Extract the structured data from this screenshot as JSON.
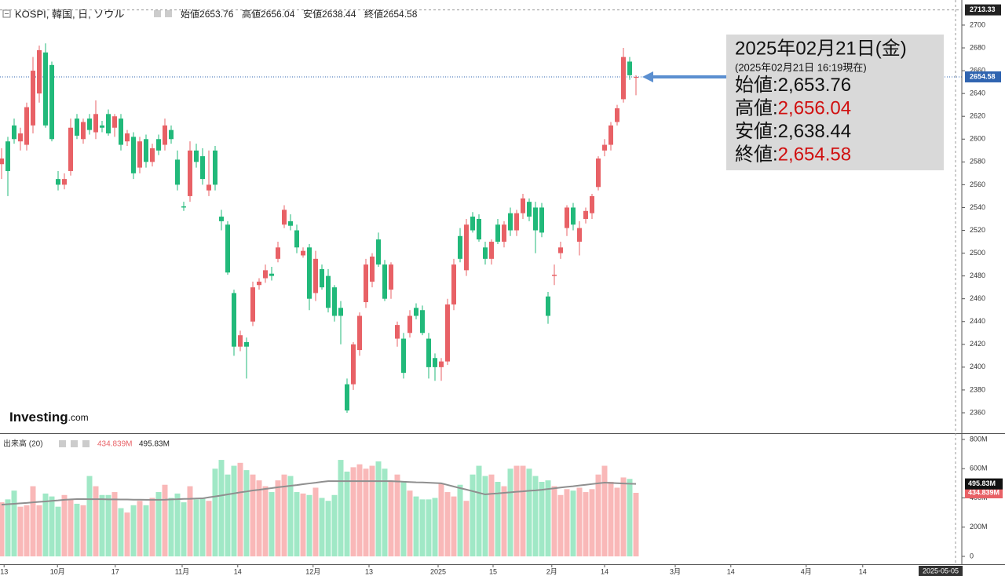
{
  "header": {
    "title": "KOSPI, 韓国, 日, ソウル",
    "labels": [
      "始値",
      "高値",
      "安値",
      "終値"
    ],
    "values": [
      2653.76,
      2656.04,
      2638.44,
      2654.58
    ]
  },
  "logo": "Investing",
  "logo_suffix": ".com",
  "info_box": {
    "date": "2025年02月21日(金)",
    "timestamp": "(2025年02月21日 16:19現在)",
    "labels": [
      "始値:",
      "高値:",
      "安値:",
      "終値:"
    ],
    "values": [
      "2,653.76",
      "2,656.04",
      "2,638.44",
      "2,654.58"
    ],
    "value_colors": [
      "#111111",
      "#d01010",
      "#111111",
      "#d01010"
    ]
  },
  "chart_data": [
    {
      "type": "candlestick",
      "up_color": "#e86166",
      "down_color": "#21b97a",
      "xlim": [
        -0.25,
        152.875
      ],
      "xticks": [
        {
          "value": 0.4,
          "label": "13"
        },
        {
          "value": 8.9,
          "label": "10月"
        },
        {
          "value": 18.1,
          "label": "17"
        },
        {
          "value": 28.75,
          "label": "11月"
        },
        {
          "value": 37.6,
          "label": "14"
        },
        {
          "value": 49.6,
          "label": "12月"
        },
        {
          "value": 58.5,
          "label": "13"
        },
        {
          "value": 69.5,
          "label": "2025"
        },
        {
          "value": 78.25,
          "label": "15"
        },
        {
          "value": 87.6,
          "label": "2月"
        },
        {
          "value": 96,
          "label": "14"
        },
        {
          "value": 107.25,
          "label": "3月"
        },
        {
          "value": 116.1,
          "label": "14"
        },
        {
          "value": 128.1,
          "label": "4月"
        },
        {
          "value": 137.1,
          "label": "14"
        }
      ],
      "cursor_date": {
        "value": 149.5,
        "label": "2025-05-05"
      },
      "ylim": [
        2342.1,
        2722
      ],
      "yticks": [
        2360,
        2380,
        2400,
        2420,
        2440,
        2460,
        2480,
        2500,
        2520,
        2540,
        2560,
        2580,
        2600,
        2620,
        2640,
        2660,
        2680,
        2700
      ],
      "high_marker": 2713.33,
      "last_price": 2654.58,
      "open": [
        2578,
        2598,
        2612,
        2598,
        2595,
        2612,
        2640,
        2676,
        2665,
        2565,
        2560,
        2572,
        2618,
        2600,
        2618,
        2606,
        2612,
        2622,
        2610,
        2618,
        2598,
        2602,
        2575,
        2600,
        2580,
        2600,
        2595,
        2608,
        2582,
        2541,
        2550,
        2590,
        2585,
        2555,
        2590,
        2532,
        2525,
        2465,
        2418,
        2422,
        2440,
        2472,
        2478,
        2482,
        2495,
        2525,
        2528,
        2520,
        2498,
        2505,
        2465,
        2486,
        2480,
        2470,
        2452,
        2385,
        2385,
        2415,
        2457,
        2475,
        2512,
        2490,
        2468,
        2425,
        2425,
        2430,
        2452,
        2450,
        2425,
        2408,
        2400,
        2405,
        2455,
        2515,
        2485,
        2532,
        2530,
        2505,
        2495,
        2525,
        2510,
        2535,
        2520,
        2535,
        2545,
        2540,
        2540,
        2462,
        2480,
        2500,
        2522,
        2540,
        2510,
        2530,
        2535,
        2558,
        2590,
        2595,
        2615,
        2635,
        2668,
        2653.76
      ],
      "high": [
        2592,
        2602,
        2618,
        2610,
        2632,
        2672,
        2682,
        2684,
        2668,
        2572,
        2570,
        2618,
        2622,
        2618,
        2622,
        2634,
        2616,
        2626,
        2622,
        2622,
        2608,
        2606,
        2602,
        2604,
        2596,
        2604,
        2618,
        2612,
        2590,
        2545,
        2598,
        2596,
        2592,
        2590,
        2594,
        2538,
        2528,
        2468,
        2432,
        2426,
        2475,
        2478,
        2490,
        2488,
        2510,
        2542,
        2534,
        2525,
        2505,
        2508,
        2502,
        2490,
        2486,
        2472,
        2458,
        2390,
        2422,
        2448,
        2495,
        2500,
        2518,
        2494,
        2492,
        2440,
        2430,
        2450,
        2456,
        2454,
        2430,
        2412,
        2408,
        2460,
        2495,
        2522,
        2530,
        2536,
        2534,
        2510,
        2512,
        2530,
        2528,
        2540,
        2538,
        2552,
        2548,
        2545,
        2544,
        2466,
        2490,
        2510,
        2542,
        2544,
        2528,
        2540,
        2552,
        2585,
        2600,
        2615,
        2630,
        2680,
        2672,
        2656.04
      ],
      "low": [
        2565,
        2550,
        2596,
        2590,
        2590,
        2605,
        2632,
        2610,
        2598,
        2555,
        2556,
        2568,
        2600,
        2596,
        2604,
        2600,
        2606,
        2603,
        2602,
        2590,
        2594,
        2565,
        2570,
        2575,
        2576,
        2586,
        2590,
        2596,
        2555,
        2537,
        2545,
        2575,
        2560,
        2550,
        2555,
        2520,
        2481,
        2410,
        2414,
        2390,
        2436,
        2468,
        2474,
        2476,
        2492,
        2522,
        2520,
        2500,
        2496,
        2450,
        2458,
        2468,
        2448,
        2440,
        2420,
        2360,
        2380,
        2410,
        2452,
        2470,
        2488,
        2458,
        2460,
        2418,
        2390,
        2426,
        2442,
        2428,
        2390,
        2388,
        2388,
        2402,
        2450,
        2492,
        2480,
        2518,
        2510,
        2490,
        2490,
        2508,
        2505,
        2515,
        2515,
        2530,
        2528,
        2500,
        2514,
        2438,
        2472,
        2495,
        2515,
        2520,
        2498,
        2526,
        2530,
        2555,
        2585,
        2590,
        2612,
        2632,
        2652,
        2638.44
      ],
      "close": [
        2583,
        2572,
        2600,
        2605,
        2628,
        2660,
        2678,
        2612,
        2600,
        2560,
        2565,
        2610,
        2603,
        2615,
        2608,
        2622,
        2610,
        2605,
        2620,
        2595,
        2605,
        2570,
        2598,
        2580,
        2592,
        2590,
        2612,
        2600,
        2560,
        2540,
        2590,
        2580,
        2565,
        2560,
        2560,
        2528,
        2483,
        2418,
        2428,
        2418,
        2470,
        2475,
        2485,
        2480,
        2505,
        2538,
        2524,
        2505,
        2502,
        2460,
        2495,
        2470,
        2452,
        2445,
        2445,
        2362,
        2420,
        2445,
        2490,
        2497,
        2490,
        2460,
        2490,
        2437,
        2395,
        2445,
        2445,
        2430,
        2400,
        2400,
        2405,
        2455,
        2490,
        2495,
        2525,
        2520,
        2512,
        2495,
        2510,
        2510,
        2525,
        2520,
        2535,
        2548,
        2532,
        2520,
        2518,
        2445,
        2481,
        2505,
        2540,
        2525,
        2522,
        2537,
        2550,
        2583,
        2595,
        2612,
        2627,
        2672,
        2656,
        2654.58
      ]
    },
    {
      "type": "bar",
      "title": "出来高 (20)",
      "legend_values": [
        "434.839M",
        "495.83M"
      ],
      "up_color": "#f9b8b8",
      "down_color": "#a0e8c6",
      "ma_color": "#8f8f8f",
      "tag_colors": [
        "#e86166",
        "#111111"
      ],
      "ylim": [
        -48.3,
        837.6
      ],
      "yticks": [
        0,
        {
          "value": 200,
          "label": "200M"
        },
        {
          "value": 400,
          "label": "400M"
        },
        {
          "value": 600,
          "label": "600M"
        },
        {
          "value": 800,
          "label": "800M"
        }
      ],
      "values": [
        370,
        390,
        450,
        340,
        350,
        480,
        350,
        430,
        410,
        340,
        420,
        390,
        360,
        350,
        550,
        480,
        420,
        420,
        440,
        330,
        300,
        350,
        380,
        350,
        400,
        440,
        490,
        400,
        430,
        370,
        480,
        390,
        400,
        380,
        600,
        660,
        560,
        620,
        640,
        590,
        560,
        520,
        480,
        440,
        520,
        560,
        550,
        440,
        430,
        420,
        470,
        400,
        380,
        420,
        660,
        580,
        610,
        630,
        600,
        620,
        650,
        600,
        520,
        560,
        510,
        450,
        410,
        390,
        390,
        400,
        500,
        440,
        410,
        490,
        380,
        560,
        620,
        550,
        560,
        510,
        480,
        600,
        620,
        620,
        600,
        550,
        510,
        520,
        480,
        420,
        460,
        450,
        470,
        440,
        460,
        560,
        620,
        510,
        470,
        540,
        530,
        434.839
      ],
      "ma": [
        354,
        357,
        360,
        363,
        366,
        370,
        373,
        376,
        380,
        383,
        387,
        390,
        392,
        392,
        391,
        391,
        391,
        390,
        390,
        389,
        389,
        388,
        388,
        387,
        387,
        387,
        388,
        390,
        391,
        393,
        394,
        396,
        397,
        404,
        410,
        417,
        424,
        431,
        438,
        444,
        451,
        456,
        462,
        467,
        473,
        478,
        483,
        488,
        494,
        499,
        504,
        510,
        515,
        515,
        515,
        515,
        515,
        515,
        515,
        515,
        515,
        515,
        515,
        513,
        511,
        509,
        507,
        506,
        504,
        502,
        500,
        489,
        478,
        467,
        457,
        446,
        435,
        424,
        428,
        431,
        435,
        438,
        442,
        445,
        449,
        452,
        456,
        461,
        466,
        471,
        476,
        480,
        485,
        490,
        495,
        500,
        505,
        503,
        501,
        499,
        497,
        495.83
      ]
    }
  ]
}
